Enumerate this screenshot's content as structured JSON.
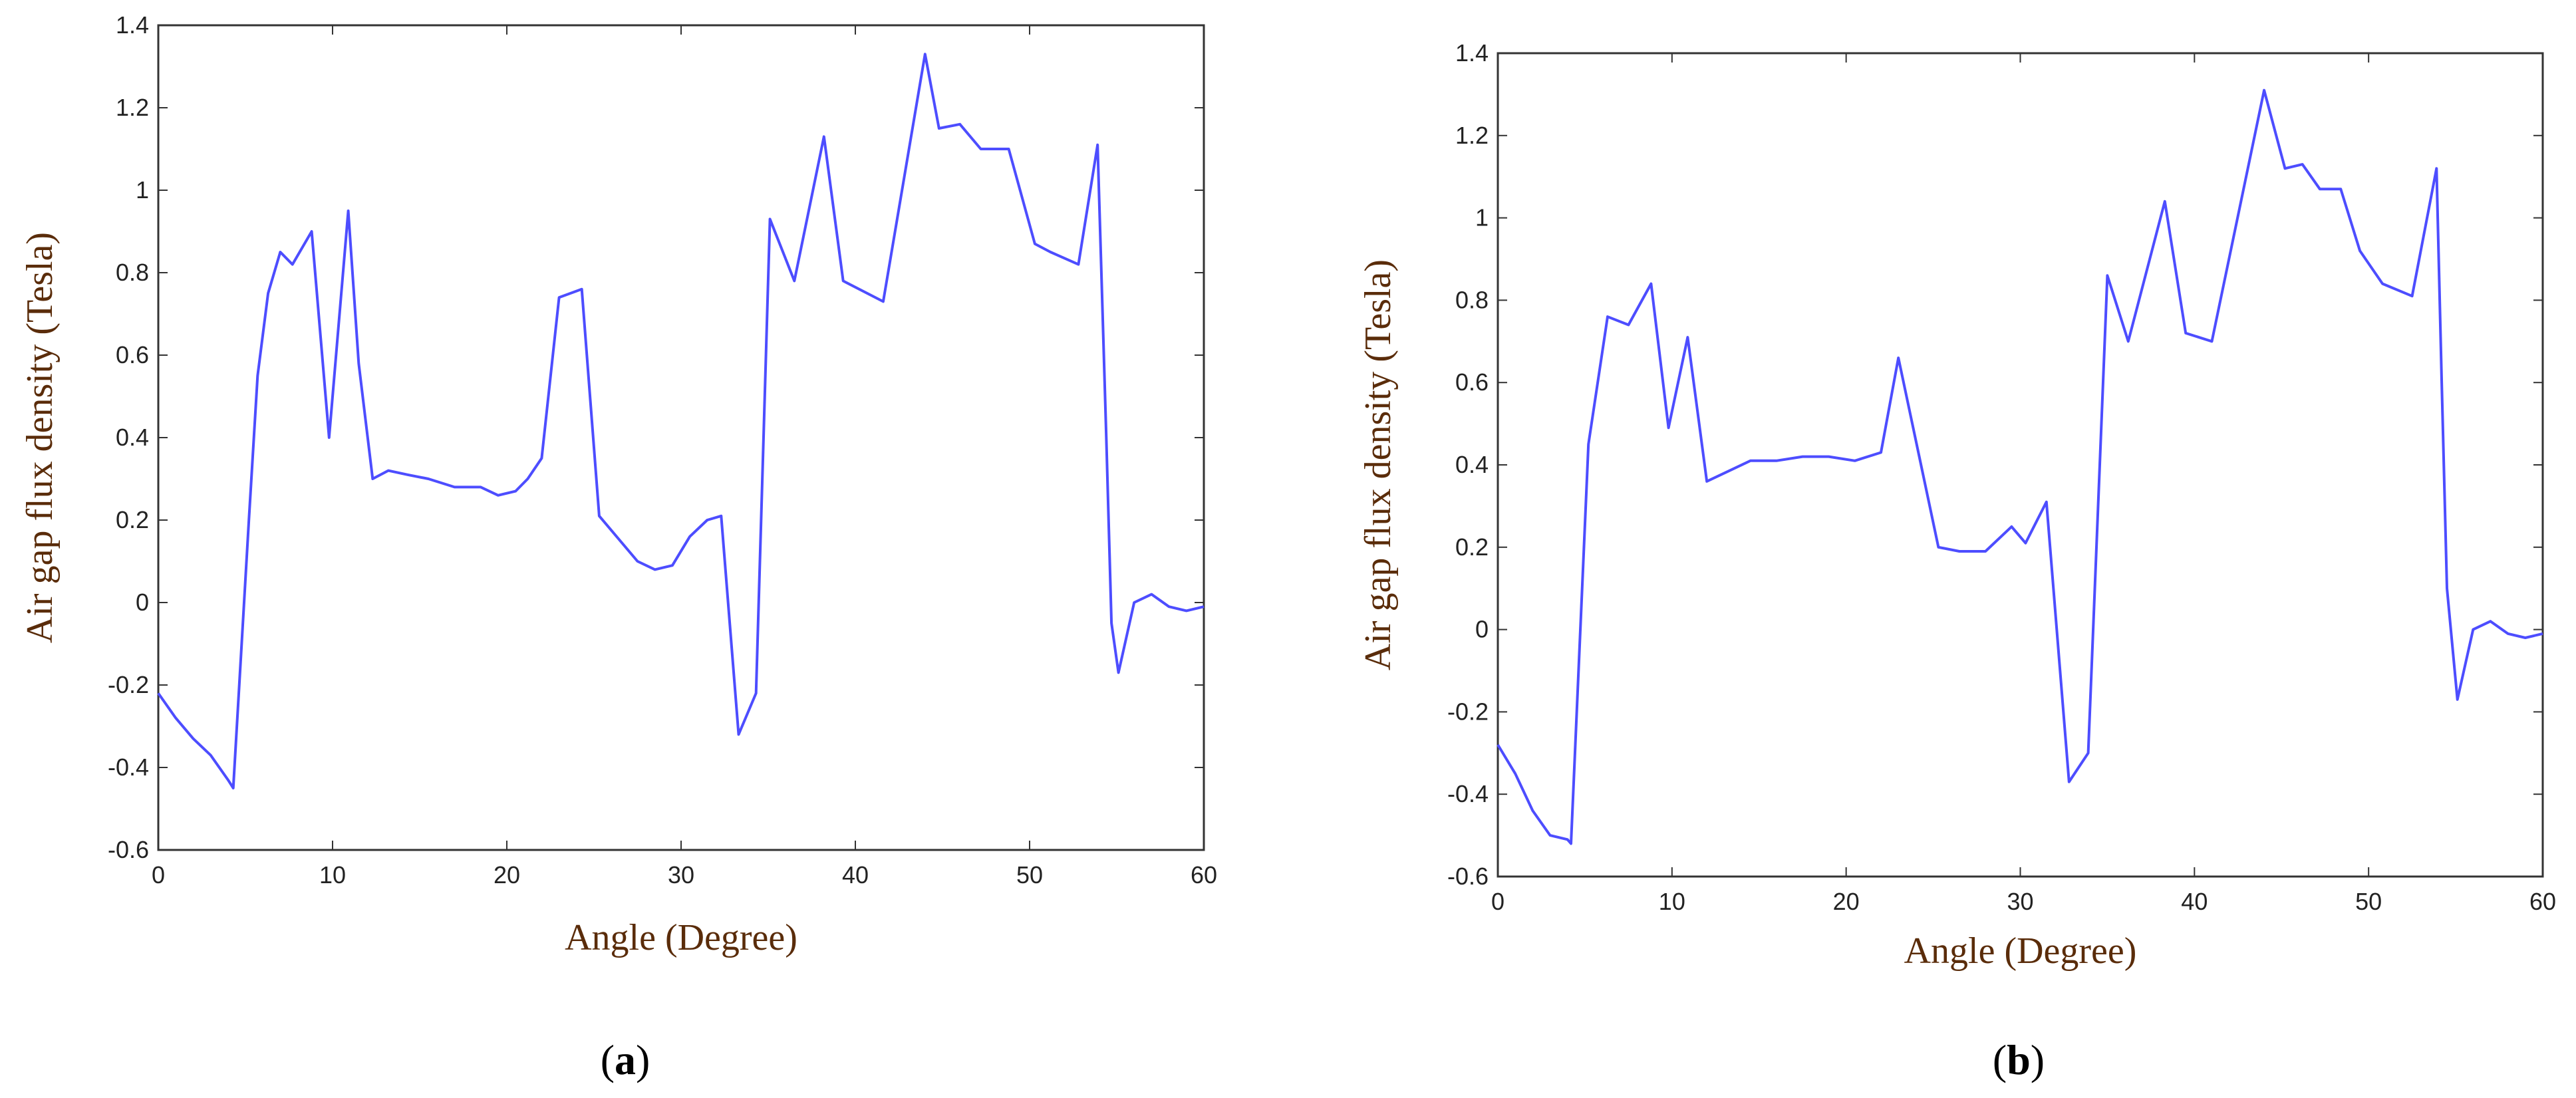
{
  "chart_data": [
    {
      "type": "line",
      "panel_label": "a",
      "xlabel": "Angle (Degree)",
      "ylabel": "Air gap flux density (Tesla)",
      "xlim": [
        0,
        60
      ],
      "ylim": [
        -0.6,
        1.4
      ],
      "x_ticks": [
        "0",
        "10",
        "20",
        "30",
        "40",
        "50",
        "60"
      ],
      "y_ticks": [
        "-0.6",
        "-0.4",
        "-0.2",
        "0",
        "0.2",
        "0.4",
        "0.6",
        "0.8",
        "1",
        "1.2",
        "1.4"
      ],
      "grid": false,
      "series": [
        {
          "color": "#4d4dff",
          "x": [
            0,
            1,
            2,
            3,
            4,
            4.3,
            5.2,
            5.7,
            6.3,
            7,
            7.7,
            8.8,
            9.8,
            10.9,
            11.5,
            12.3,
            13.2,
            14.3,
            15.5,
            17,
            18.5,
            19.5,
            20.5,
            21.2,
            22,
            23,
            24.3,
            25.3,
            26.5,
            27.5,
            28.5,
            29.5,
            30.5,
            31.5,
            32.3,
            33.3,
            34.3,
            35.1,
            36.5,
            38.2,
            39.3,
            41.6,
            44,
            44.8,
            46,
            47.2,
            48.8,
            50.3,
            51.2,
            52.8,
            53.9,
            54.4,
            54.7,
            55.1,
            56,
            57,
            58,
            59,
            60
          ],
          "y": [
            -0.22,
            -0.28,
            -0.33,
            -0.37,
            -0.43,
            -0.45,
            0.2,
            0.55,
            0.75,
            0.85,
            0.82,
            0.9,
            0.4,
            0.95,
            0.58,
            0.3,
            0.32,
            0.31,
            0.3,
            0.28,
            0.28,
            0.26,
            0.27,
            0.3,
            0.35,
            0.74,
            0.76,
            0.21,
            0.15,
            0.1,
            0.08,
            0.09,
            0.16,
            0.2,
            0.21,
            -0.32,
            -0.22,
            0.93,
            0.78,
            1.13,
            0.78,
            0.73,
            1.33,
            1.15,
            1.16,
            1.1,
            1.1,
            0.87,
            0.85,
            0.82,
            1.11,
            0.4,
            -0.05,
            -0.17,
            0.0,
            0.02,
            -0.01,
            -0.02,
            -0.01
          ]
        }
      ]
    },
    {
      "type": "line",
      "panel_label": "b",
      "xlabel": "Angle (Degree)",
      "ylabel": "Air gap flux density (Tesla)",
      "xlim": [
        0,
        60
      ],
      "ylim": [
        -0.6,
        1.4
      ],
      "x_ticks": [
        "0",
        "10",
        "20",
        "30",
        "40",
        "50",
        "60"
      ],
      "y_ticks": [
        "-0.6",
        "-0.4",
        "-0.2",
        "0",
        "0.2",
        "0.4",
        "0.6",
        "0.8",
        "1",
        "1.2",
        "1.4"
      ],
      "grid": false,
      "series": [
        {
          "color": "#4d4dff",
          "x": [
            0,
            1,
            2,
            3,
            4,
            4.2,
            5.2,
            6.3,
            7.5,
            8.8,
            9.8,
            10.9,
            12,
            13,
            14.5,
            16,
            17.5,
            19,
            20.5,
            22,
            23,
            24.2,
            25.3,
            26.5,
            28,
            29.5,
            30.3,
            31.5,
            32.8,
            33.9,
            35,
            36.2,
            38.3,
            39.5,
            41,
            44,
            45.2,
            46.2,
            47.2,
            48.4,
            49.5,
            50.8,
            52.5,
            53.9,
            54.2,
            54.5,
            55.1,
            56,
            57,
            58,
            59,
            60
          ],
          "y": [
            -0.28,
            -0.35,
            -0.44,
            -0.5,
            -0.51,
            -0.52,
            0.45,
            0.76,
            0.74,
            0.84,
            0.49,
            0.71,
            0.36,
            0.38,
            0.41,
            0.41,
            0.42,
            0.42,
            0.41,
            0.43,
            0.66,
            0.42,
            0.2,
            0.19,
            0.19,
            0.25,
            0.21,
            0.31,
            -0.37,
            -0.3,
            0.86,
            0.7,
            1.04,
            0.72,
            0.7,
            1.31,
            1.12,
            1.13,
            1.07,
            1.07,
            0.92,
            0.84,
            0.81,
            1.12,
            0.6,
            0.1,
            -0.17,
            0.0,
            0.02,
            -0.01,
            -0.02,
            -0.01
          ]
        }
      ]
    }
  ]
}
